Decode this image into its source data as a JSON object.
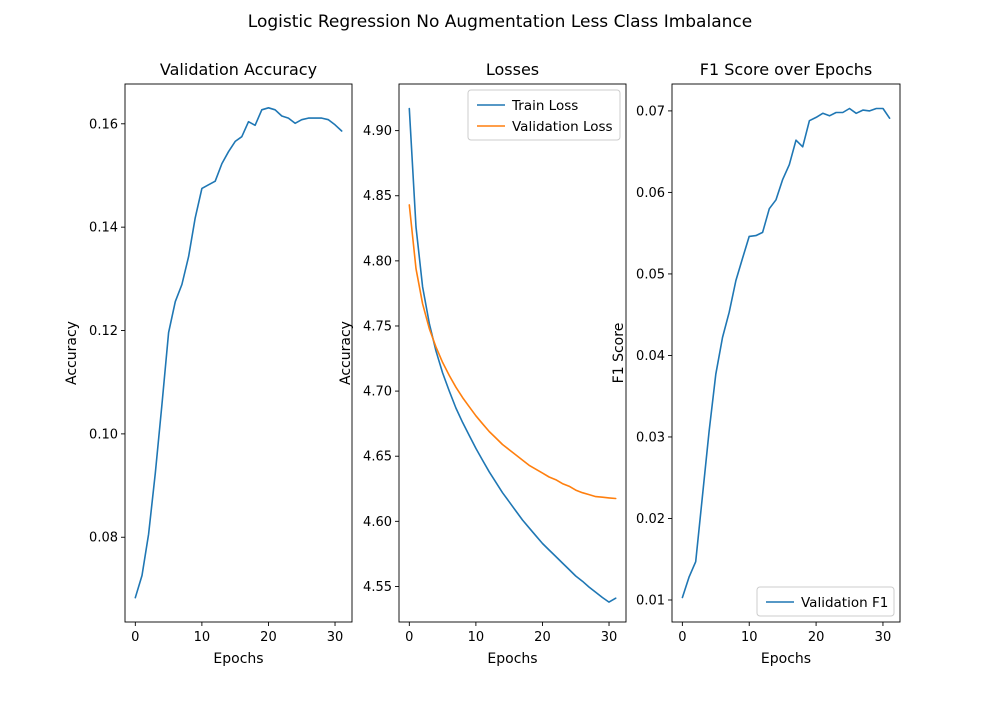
{
  "figure": {
    "suptitle": "Logistic Regression No Augmentation Less Class Imbalance"
  },
  "colors": {
    "blue": "#1f77b4",
    "orange": "#ff7f0e"
  },
  "chart_data": [
    {
      "type": "line",
      "title": "Validation Accuracy",
      "xlabel": "Epochs",
      "ylabel": "Accuracy",
      "xlim": [
        -1.55,
        32.55
      ],
      "ylim": [
        0.0636,
        0.1677
      ],
      "xticks": [
        0,
        10,
        20,
        30
      ],
      "yticks": [
        0.08,
        0.1,
        0.12,
        0.14,
        0.16
      ],
      "tick_decimals": 2,
      "legend": null,
      "series": [
        {
          "color": "#1f77b4",
          "x": [
            0,
            1,
            2,
            3,
            4,
            5,
            6,
            7,
            8,
            9,
            10,
            11,
            12,
            13,
            14,
            15,
            16,
            17,
            18,
            19,
            20,
            21,
            22,
            23,
            24,
            25,
            26,
            27,
            28,
            29,
            30,
            31
          ],
          "y": [
            0.0683,
            0.0726,
            0.0806,
            0.0924,
            0.1056,
            0.1196,
            0.1256,
            0.1289,
            0.1343,
            0.1418,
            0.1475,
            0.1482,
            0.1489,
            0.1523,
            0.1546,
            0.1566,
            0.1575,
            0.1604,
            0.1597,
            0.1627,
            0.1631,
            0.1627,
            0.1615,
            0.1611,
            0.1601,
            0.1608,
            0.1611,
            0.1611,
            0.1611,
            0.1608,
            0.1598,
            0.1586
          ]
        }
      ]
    },
    {
      "type": "line",
      "title": "Losses",
      "xlabel": "Epochs",
      "ylabel": "Accuracy",
      "xlim": [
        -1.55,
        32.55
      ],
      "ylim": [
        4.5227,
        4.9358
      ],
      "xticks": [
        0,
        10,
        20,
        30
      ],
      "yticks": [
        4.55,
        4.6,
        4.65,
        4.7,
        4.75,
        4.8,
        4.85,
        4.9
      ],
      "tick_decimals": 2,
      "legend": "upper right",
      "series": [
        {
          "name": "Train Loss",
          "color": "#1f77b4",
          "x": [
            0,
            1,
            2,
            3,
            4,
            5,
            6,
            7,
            8,
            9,
            10,
            11,
            12,
            13,
            14,
            15,
            16,
            17,
            18,
            19,
            20,
            21,
            22,
            23,
            24,
            25,
            26,
            27,
            28,
            29,
            30,
            31
          ],
          "y": [
            4.917,
            4.826,
            4.78,
            4.752,
            4.731,
            4.714,
            4.7,
            4.687,
            4.676,
            4.666,
            4.656,
            4.647,
            4.638,
            4.63,
            4.622,
            4.615,
            4.608,
            4.601,
            4.595,
            4.589,
            4.583,
            4.578,
            4.573,
            4.568,
            4.563,
            4.558,
            4.554,
            4.5495,
            4.5455,
            4.5415,
            4.538,
            4.541
          ]
        },
        {
          "name": "Validation Loss",
          "color": "#ff7f0e",
          "x": [
            0,
            1,
            2,
            3,
            4,
            5,
            6,
            7,
            8,
            9,
            10,
            11,
            12,
            13,
            14,
            15,
            16,
            17,
            18,
            19,
            20,
            21,
            22,
            23,
            24,
            25,
            26,
            27,
            28,
            29,
            30,
            31
          ],
          "y": [
            4.843,
            4.794,
            4.767,
            4.748,
            4.734,
            4.722,
            4.712,
            4.703,
            4.695,
            4.688,
            4.681,
            4.675,
            4.669,
            4.664,
            4.659,
            4.655,
            4.651,
            4.647,
            4.643,
            4.64,
            4.637,
            4.634,
            4.632,
            4.629,
            4.627,
            4.624,
            4.622,
            4.6205,
            4.619,
            4.6185,
            4.618,
            4.6175
          ]
        }
      ]
    },
    {
      "type": "line",
      "title": "F1 Score over Epochs",
      "xlabel": "Epochs",
      "ylabel": "F1 Score",
      "xlim": [
        -1.55,
        32.55
      ],
      "ylim": [
        0.0073,
        0.0733
      ],
      "xticks": [
        0,
        10,
        20,
        30
      ],
      "yticks": [
        0.01,
        0.02,
        0.03,
        0.04,
        0.05,
        0.06,
        0.07
      ],
      "tick_decimals": 2,
      "legend": "lower right",
      "series": [
        {
          "name": "Validation F1",
          "color": "#1f77b4",
          "x": [
            0,
            1,
            2,
            3,
            4,
            5,
            6,
            7,
            8,
            9,
            10,
            11,
            12,
            13,
            14,
            15,
            16,
            17,
            18,
            19,
            20,
            21,
            22,
            23,
            24,
            25,
            26,
            27,
            28,
            29,
            30,
            31
          ],
          "y": [
            0.0103,
            0.0128,
            0.0147,
            0.0227,
            0.0307,
            0.0377,
            0.0422,
            0.0453,
            0.0492,
            0.0519,
            0.0546,
            0.0547,
            0.0551,
            0.058,
            0.0591,
            0.0616,
            0.0634,
            0.0664,
            0.0656,
            0.0688,
            0.0692,
            0.0697,
            0.0694,
            0.0698,
            0.0698,
            0.0703,
            0.0697,
            0.0701,
            0.07,
            0.0703,
            0.0703,
            0.0691
          ]
        }
      ]
    }
  ]
}
